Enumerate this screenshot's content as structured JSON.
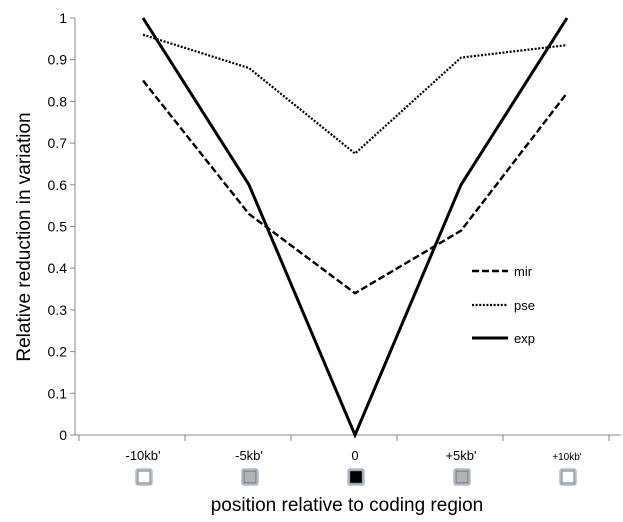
{
  "chart_data": {
    "type": "line",
    "title": "",
    "xlabel": "position relative to coding region",
    "ylabel": "Relative reduction in variation",
    "categories": [
      "-10kb'",
      "-5kb'",
      "0",
      "+5kb'",
      "+10kb'"
    ],
    "marker_colors": [
      "#ffffff",
      "#b3b3b3",
      "#000000",
      "#b3b3b3",
      "#ffffff"
    ],
    "ylim": [
      0,
      1
    ],
    "yticks": [
      "0",
      "0.1",
      "0.2",
      "0.3",
      "0.4",
      "0.5",
      "0.6",
      "0.7",
      "0.8",
      "0.9",
      "1"
    ],
    "grid": false,
    "legend_position": "right",
    "series": [
      {
        "name": "mir",
        "style": "dashed",
        "values": [
          0.85,
          0.53,
          0.34,
          0.49,
          0.82
        ]
      },
      {
        "name": "pse",
        "style": "dotted",
        "values": [
          0.96,
          0.88,
          0.675,
          0.905,
          0.935
        ]
      },
      {
        "name": "exp",
        "style": "solid",
        "values": [
          1.0,
          0.6,
          0.0,
          0.6,
          1.0
        ]
      }
    ]
  }
}
